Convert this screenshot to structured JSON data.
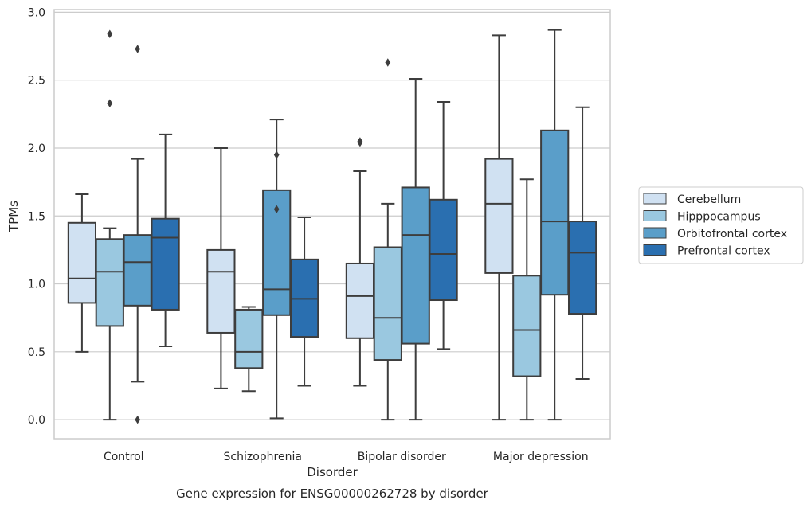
{
  "chart_data": {
    "type": "box",
    "title": "Gene expression for ENSG00000262728 by disorder",
    "xlabel": "Disorder",
    "ylabel": "TPMs",
    "ylim": [
      -0.14,
      3.02
    ],
    "yticks": [
      "0.0",
      "0.5",
      "1.0",
      "1.5",
      "2.0",
      "2.5",
      "3.0"
    ],
    "grid": true,
    "legend_position": "right",
    "categories": [
      "Control",
      "Schizophrenia",
      "Bipolar disorder",
      "Major depression"
    ],
    "series": [
      {
        "name": "Cerebellum",
        "color": "#d0e1f2",
        "boxes": [
          {
            "min": 0.5,
            "q1": 0.86,
            "median": 1.04,
            "q3": 1.45,
            "max": 1.66,
            "outliers": []
          },
          {
            "min": 0.23,
            "q1": 0.64,
            "median": 1.09,
            "q3": 1.25,
            "max": 2.0,
            "outliers": []
          },
          {
            "min": 0.25,
            "q1": 0.6,
            "median": 0.91,
            "q3": 1.15,
            "max": 1.83,
            "outliers": [
              2.04,
              2.05
            ]
          },
          {
            "min": 0.0,
            "q1": 1.08,
            "median": 1.59,
            "q3": 1.92,
            "max": 2.83,
            "outliers": []
          }
        ]
      },
      {
        "name": "Hipppocampus",
        "color": "#9ac8e0",
        "boxes": [
          {
            "min": 0.0,
            "q1": 0.69,
            "median": 1.09,
            "q3": 1.33,
            "max": 1.41,
            "outliers": [
              2.33,
              2.84
            ]
          },
          {
            "min": 0.21,
            "q1": 0.38,
            "median": 0.5,
            "q3": 0.81,
            "max": 0.83,
            "outliers": []
          },
          {
            "min": 0.0,
            "q1": 0.44,
            "median": 0.75,
            "q3": 1.27,
            "max": 1.59,
            "outliers": [
              2.63
            ]
          },
          {
            "min": 0.0,
            "q1": 0.32,
            "median": 0.66,
            "q3": 1.06,
            "max": 1.77,
            "outliers": []
          }
        ]
      },
      {
        "name": "Orbitofrontal cortex",
        "color": "#5a9ec9",
        "boxes": [
          {
            "min": 0.28,
            "q1": 0.84,
            "median": 1.16,
            "q3": 1.36,
            "max": 1.92,
            "outliers": [
              0.0,
              2.73
            ]
          },
          {
            "min": 0.01,
            "q1": 0.77,
            "median": 0.96,
            "q3": 1.69,
            "max": 2.21,
            "outliers": [
              1.55,
              1.95
            ]
          },
          {
            "min": 0.0,
            "q1": 0.56,
            "median": 1.36,
            "q3": 1.71,
            "max": 2.51,
            "outliers": []
          },
          {
            "min": 0.0,
            "q1": 0.92,
            "median": 1.46,
            "q3": 2.13,
            "max": 2.87,
            "outliers": []
          }
        ]
      },
      {
        "name": "Prefrontal cortex",
        "color": "#2a6fb0",
        "boxes": [
          {
            "min": 0.54,
            "q1": 0.81,
            "median": 1.34,
            "q3": 1.48,
            "max": 2.1,
            "outliers": []
          },
          {
            "min": 0.25,
            "q1": 0.61,
            "median": 0.89,
            "q3": 1.18,
            "max": 1.49,
            "outliers": []
          },
          {
            "min": 0.52,
            "q1": 0.88,
            "median": 1.22,
            "q3": 1.62,
            "max": 2.34,
            "outliers": []
          },
          {
            "min": 0.3,
            "q1": 0.78,
            "median": 1.23,
            "q3": 1.46,
            "max": 2.3,
            "outliers": []
          }
        ]
      }
    ]
  }
}
